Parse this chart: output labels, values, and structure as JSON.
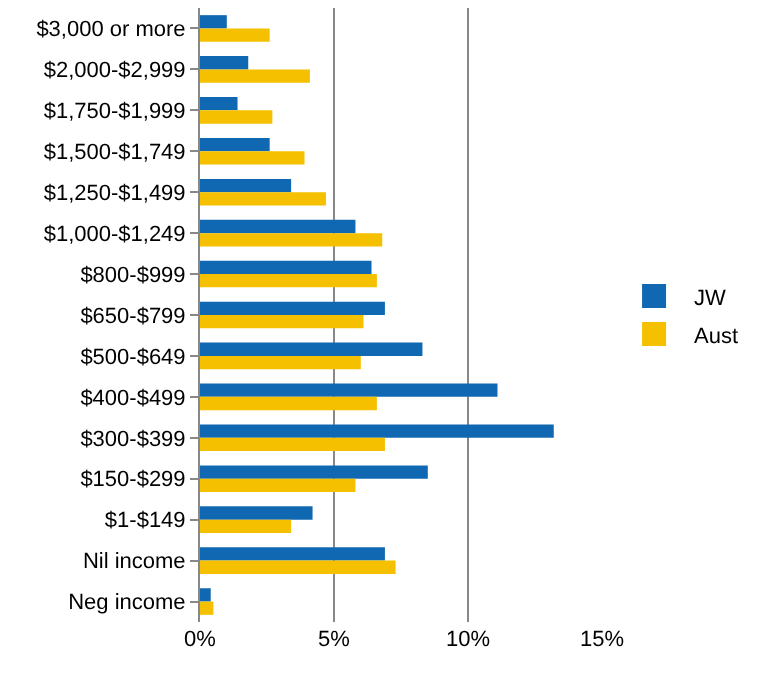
{
  "chart_data": {
    "type": "bar",
    "orientation": "horizontal",
    "categories": [
      "$3,000 or more",
      "$2,000-$2,999",
      "$1,750-$1,999",
      "$1,500-$1,749",
      "$1,250-$1,499",
      "$1,000-$1,249",
      "$800-$999",
      "$650-$799",
      "$500-$649",
      "$400-$499",
      "$300-$399",
      "$150-$299",
      "$1-$149",
      "Nil income",
      "Neg income"
    ],
    "series": [
      {
        "name": "JW",
        "color": "#1068b2",
        "values": [
          1.0,
          1.8,
          1.4,
          2.6,
          3.4,
          5.8,
          6.4,
          6.9,
          8.3,
          11.1,
          13.2,
          8.5,
          4.2,
          6.9,
          0.4
        ]
      },
      {
        "name": "Aust",
        "color": "#f5c000",
        "values": [
          2.6,
          4.1,
          2.7,
          3.9,
          4.7,
          6.8,
          6.6,
          6.1,
          6.0,
          6.6,
          6.9,
          5.8,
          3.4,
          7.3,
          0.5
        ]
      }
    ],
    "xlim": [
      0,
      15
    ],
    "xticks": [
      {
        "value": 0,
        "label": "0%"
      },
      {
        "value": 5,
        "label": "5%"
      },
      {
        "value": 10,
        "label": "10%"
      },
      {
        "value": 15,
        "label": "15%"
      }
    ],
    "grid": "x",
    "legend": "right"
  }
}
